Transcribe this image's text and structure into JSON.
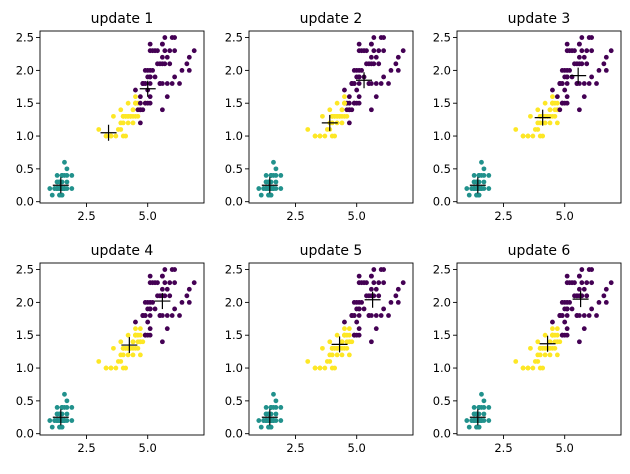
{
  "figure": {
    "colors": {
      "cluster_purple": "#440154",
      "cluster_teal": "#21918c",
      "cluster_yellow": "#fde725",
      "centroid_marker": "#000000"
    }
  },
  "chart_data": [
    {
      "type": "scatter",
      "title": "update 1",
      "xticks": [
        "2.5",
        "5.0"
      ],
      "yticks": [
        "0.0",
        "0.5",
        "1.0",
        "1.5",
        "2.0",
        "2.5"
      ],
      "xlim": [
        0.6,
        7.3
      ],
      "ylim": [
        -0.02,
        2.6
      ],
      "centroids": [
        {
          "x": 3.4,
          "y": 1.05
        },
        {
          "x": 5.0,
          "y": 1.72
        },
        {
          "x": 1.45,
          "y": 0.25
        }
      ],
      "cluster_colors": [
        "cluster_purple",
        "cluster_teal",
        "cluster_yellow"
      ]
    },
    {
      "type": "scatter",
      "title": "update 2",
      "xticks": [
        "2.5",
        "5.0"
      ],
      "yticks": [
        "0.0",
        "0.5",
        "1.0",
        "1.5",
        "2.0",
        "2.5"
      ],
      "xlim": [
        0.6,
        7.3
      ],
      "ylim": [
        -0.02,
        2.6
      ],
      "centroids": [
        {
          "x": 3.9,
          "y": 1.2
        },
        {
          "x": 5.3,
          "y": 1.85
        },
        {
          "x": 1.45,
          "y": 0.25
        }
      ]
    },
    {
      "type": "scatter",
      "title": "update 3",
      "xticks": [
        "2.5",
        "5.0"
      ],
      "yticks": [
        "0.0",
        "0.5",
        "1.0",
        "1.5",
        "2.0",
        "2.5"
      ],
      "xlim": [
        0.6,
        7.3
      ],
      "ylim": [
        -0.02,
        2.6
      ],
      "centroids": [
        {
          "x": 4.1,
          "y": 1.28
        },
        {
          "x": 5.55,
          "y": 1.92
        },
        {
          "x": 1.45,
          "y": 0.25
        }
      ]
    },
    {
      "type": "scatter",
      "title": "update 4",
      "xticks": [
        "2.5",
        "5.0"
      ],
      "yticks": [
        "0.0",
        "0.5",
        "1.0",
        "1.5",
        "2.0",
        "2.5"
      ],
      "xlim": [
        0.6,
        7.3
      ],
      "ylim": [
        -0.02,
        2.6
      ],
      "centroids": [
        {
          "x": 4.25,
          "y": 1.35
        },
        {
          "x": 5.6,
          "y": 2.02
        },
        {
          "x": 1.45,
          "y": 0.25
        }
      ]
    },
    {
      "type": "scatter",
      "title": "update 5",
      "xticks": [
        "2.5",
        "5.0"
      ],
      "yticks": [
        "0.0",
        "0.5",
        "1.0",
        "1.5",
        "2.0",
        "2.5"
      ],
      "xlim": [
        0.6,
        7.3
      ],
      "ylim": [
        -0.02,
        2.6
      ],
      "centroids": [
        {
          "x": 4.3,
          "y": 1.36
        },
        {
          "x": 5.65,
          "y": 2.04
        },
        {
          "x": 1.45,
          "y": 0.25
        }
      ]
    },
    {
      "type": "scatter",
      "title": "update 6",
      "xticks": [
        "2.5",
        "5.0"
      ],
      "yticks": [
        "0.0",
        "0.5",
        "1.0",
        "1.5",
        "2.0",
        "2.5"
      ],
      "xlim": [
        0.6,
        7.3
      ],
      "ylim": [
        -0.02,
        2.6
      ],
      "centroids": [
        {
          "x": 4.3,
          "y": 1.37
        },
        {
          "x": 5.65,
          "y": 2.05
        },
        {
          "x": 1.45,
          "y": 0.25
        }
      ]
    }
  ],
  "points": {
    "teal": [
      [
        1.4,
        0.2
      ],
      [
        1.4,
        0.2
      ],
      [
        1.3,
        0.2
      ],
      [
        1.5,
        0.2
      ],
      [
        1.4,
        0.2
      ],
      [
        1.7,
        0.4
      ],
      [
        1.4,
        0.3
      ],
      [
        1.5,
        0.2
      ],
      [
        1.4,
        0.2
      ],
      [
        1.5,
        0.1
      ],
      [
        1.5,
        0.2
      ],
      [
        1.6,
        0.2
      ],
      [
        1.4,
        0.1
      ],
      [
        1.1,
        0.1
      ],
      [
        1.2,
        0.2
      ],
      [
        1.5,
        0.4
      ],
      [
        1.3,
        0.4
      ],
      [
        1.4,
        0.3
      ],
      [
        1.7,
        0.3
      ],
      [
        1.5,
        0.3
      ],
      [
        1.7,
        0.2
      ],
      [
        1.5,
        0.4
      ],
      [
        1.0,
        0.2
      ],
      [
        1.7,
        0.5
      ],
      [
        1.9,
        0.2
      ],
      [
        1.6,
        0.2
      ],
      [
        1.6,
        0.4
      ],
      [
        1.5,
        0.2
      ],
      [
        1.4,
        0.2
      ],
      [
        1.6,
        0.2
      ],
      [
        1.6,
        0.2
      ],
      [
        1.5,
        0.4
      ],
      [
        1.5,
        0.1
      ],
      [
        1.4,
        0.2
      ],
      [
        1.5,
        0.2
      ],
      [
        1.2,
        0.2
      ],
      [
        1.3,
        0.2
      ],
      [
        1.4,
        0.1
      ],
      [
        1.3,
        0.2
      ],
      [
        1.5,
        0.2
      ],
      [
        1.3,
        0.3
      ],
      [
        1.3,
        0.3
      ],
      [
        1.3,
        0.2
      ],
      [
        1.6,
        0.6
      ],
      [
        1.9,
        0.4
      ],
      [
        1.4,
        0.3
      ],
      [
        1.6,
        0.2
      ],
      [
        1.4,
        0.2
      ],
      [
        1.5,
        0.2
      ],
      [
        1.4,
        0.2
      ]
    ],
    "versicolor": [
      [
        4.7,
        1.4
      ],
      [
        4.5,
        1.5
      ],
      [
        4.9,
        1.5
      ],
      [
        4.0,
        1.3
      ],
      [
        4.6,
        1.5
      ],
      [
        4.5,
        1.3
      ],
      [
        4.7,
        1.6
      ],
      [
        3.3,
        1.0
      ],
      [
        4.6,
        1.3
      ],
      [
        3.9,
        1.4
      ],
      [
        3.5,
        1.0
      ],
      [
        4.2,
        1.5
      ],
      [
        4.0,
        1.0
      ],
      [
        4.7,
        1.4
      ],
      [
        3.6,
        1.3
      ],
      [
        4.4,
        1.4
      ],
      [
        4.5,
        1.5
      ],
      [
        4.1,
        1.0
      ],
      [
        4.5,
        1.5
      ],
      [
        3.9,
        1.1
      ],
      [
        4.8,
        1.8
      ],
      [
        4.0,
        1.3
      ],
      [
        4.9,
        1.5
      ],
      [
        4.7,
        1.2
      ],
      [
        4.3,
        1.3
      ],
      [
        4.4,
        1.4
      ],
      [
        4.8,
        1.4
      ],
      [
        5.0,
        1.7
      ],
      [
        4.5,
        1.5
      ],
      [
        3.5,
        1.0
      ],
      [
        3.8,
        1.1
      ],
      [
        3.7,
        1.0
      ],
      [
        3.9,
        1.2
      ],
      [
        5.1,
        1.6
      ],
      [
        4.5,
        1.5
      ],
      [
        4.5,
        1.6
      ],
      [
        4.7,
        1.5
      ],
      [
        4.4,
        1.3
      ],
      [
        4.1,
        1.3
      ],
      [
        4.0,
        1.3
      ],
      [
        4.4,
        1.2
      ],
      [
        4.6,
        1.4
      ],
      [
        4.0,
        1.2
      ],
      [
        3.3,
        1.0
      ],
      [
        4.2,
        1.3
      ],
      [
        4.2,
        1.2
      ],
      [
        4.2,
        1.3
      ],
      [
        4.3,
        1.3
      ],
      [
        3.0,
        1.1
      ],
      [
        4.1,
        1.3
      ]
    ],
    "virginica": [
      [
        6.0,
        2.5
      ],
      [
        5.1,
        1.9
      ],
      [
        5.9,
        2.1
      ],
      [
        5.6,
        1.8
      ],
      [
        5.8,
        2.2
      ],
      [
        6.6,
        2.1
      ],
      [
        4.5,
        1.7
      ],
      [
        6.3,
        1.8
      ],
      [
        5.8,
        1.8
      ],
      [
        6.1,
        2.5
      ],
      [
        5.1,
        2.0
      ],
      [
        5.3,
        1.9
      ],
      [
        5.5,
        2.1
      ],
      [
        5.0,
        2.0
      ],
      [
        5.1,
        2.4
      ],
      [
        5.3,
        2.3
      ],
      [
        5.5,
        1.8
      ],
      [
        6.7,
        2.2
      ],
      [
        6.9,
        2.3
      ],
      [
        5.0,
        1.5
      ],
      [
        5.7,
        2.3
      ],
      [
        4.9,
        2.0
      ],
      [
        6.7,
        2.0
      ],
      [
        4.9,
        1.8
      ],
      [
        5.7,
        2.1
      ],
      [
        6.0,
        1.8
      ],
      [
        4.8,
        1.8
      ],
      [
        4.9,
        1.8
      ],
      [
        5.6,
        2.1
      ],
      [
        5.8,
        1.6
      ],
      [
        6.1,
        1.9
      ],
      [
        6.4,
        2.0
      ],
      [
        5.6,
        2.2
      ],
      [
        5.1,
        1.5
      ],
      [
        5.6,
        1.4
      ],
      [
        6.1,
        2.3
      ],
      [
        5.6,
        2.4
      ],
      [
        5.5,
        1.8
      ],
      [
        4.8,
        1.8
      ],
      [
        5.4,
        2.1
      ],
      [
        5.6,
        2.4
      ],
      [
        5.1,
        2.3
      ],
      [
        5.1,
        1.9
      ],
      [
        5.9,
        2.3
      ],
      [
        5.7,
        2.5
      ],
      [
        5.2,
        2.3
      ],
      [
        5.0,
        1.9
      ],
      [
        5.2,
        2.0
      ],
      [
        5.4,
        2.3
      ],
      [
        5.1,
        1.8
      ]
    ],
    "assignments_versicolor": [
      [
        0,
        2,
        2,
        2,
        2,
        2,
        0,
        2,
        2,
        2,
        2,
        2,
        2,
        0,
        2,
        2,
        2,
        2,
        2,
        2,
        0,
        2,
        0,
        0,
        2,
        2,
        0,
        0,
        2,
        2,
        2,
        2,
        2,
        0,
        2,
        2,
        0,
        2,
        2,
        2,
        2,
        0,
        2,
        2,
        2,
        2,
        2,
        2,
        2,
        2
      ],
      [
        0,
        2,
        0,
        2,
        0,
        2,
        0,
        2,
        2,
        2,
        2,
        2,
        2,
        0,
        2,
        2,
        2,
        2,
        2,
        2,
        0,
        2,
        0,
        0,
        2,
        2,
        0,
        0,
        2,
        2,
        2,
        2,
        2,
        0,
        2,
        2,
        0,
        2,
        2,
        2,
        2,
        0,
        2,
        2,
        2,
        2,
        2,
        2,
        2,
        2
      ],
      [
        2,
        2,
        0,
        2,
        2,
        2,
        0,
        2,
        2,
        2,
        2,
        2,
        2,
        2,
        2,
        2,
        2,
        2,
        2,
        2,
        0,
        2,
        0,
        2,
        2,
        2,
        0,
        0,
        2,
        2,
        2,
        2,
        2,
        0,
        2,
        2,
        2,
        2,
        2,
        2,
        2,
        2,
        2,
        2,
        2,
        2,
        2,
        2,
        2,
        2
      ],
      [
        2,
        2,
        0,
        2,
        2,
        2,
        2,
        2,
        2,
        2,
        2,
        2,
        2,
        2,
        2,
        2,
        2,
        2,
        2,
        2,
        0,
        2,
        0,
        2,
        2,
        2,
        2,
        0,
        2,
        2,
        2,
        2,
        2,
        0,
        2,
        2,
        2,
        2,
        2,
        2,
        2,
        2,
        2,
        2,
        2,
        2,
        2,
        2,
        2,
        2
      ],
      [
        2,
        2,
        0,
        2,
        2,
        2,
        2,
        2,
        2,
        2,
        2,
        2,
        2,
        2,
        2,
        2,
        2,
        2,
        2,
        2,
        0,
        2,
        0,
        2,
        2,
        2,
        2,
        0,
        2,
        2,
        2,
        2,
        2,
        0,
        2,
        2,
        2,
        2,
        2,
        2,
        2,
        2,
        2,
        2,
        2,
        2,
        2,
        2,
        2,
        2
      ],
      [
        2,
        2,
        0,
        2,
        2,
        2,
        2,
        2,
        2,
        2,
        2,
        2,
        2,
        2,
        2,
        2,
        2,
        2,
        2,
        2,
        0,
        2,
        0,
        2,
        2,
        2,
        2,
        0,
        2,
        2,
        2,
        2,
        2,
        0,
        2,
        2,
        2,
        2,
        2,
        2,
        2,
        2,
        2,
        2,
        2,
        2,
        2,
        2,
        2,
        2
      ]
    ]
  }
}
